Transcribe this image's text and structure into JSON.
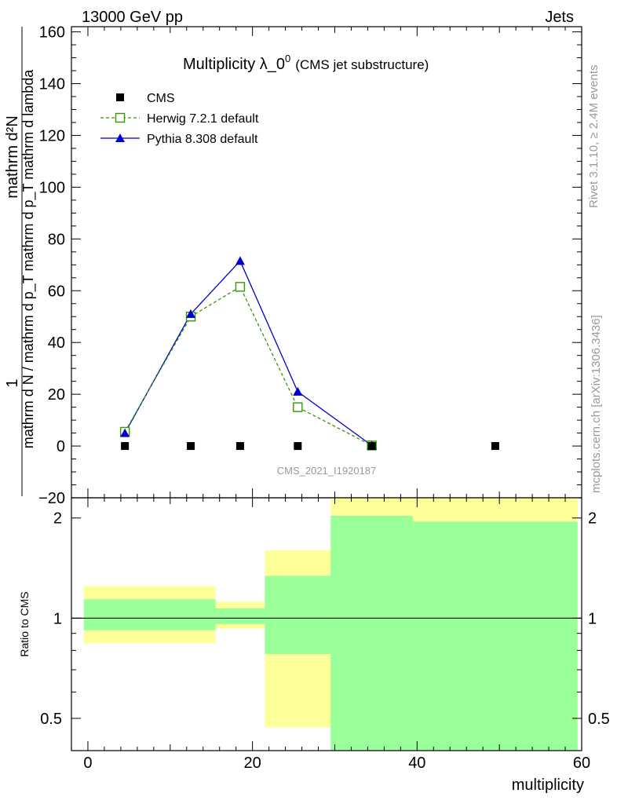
{
  "header": {
    "left": "13000 GeV pp",
    "right": "Jets"
  },
  "side": {
    "rivet": "Rivet 3.1.10, ≥ 2.4M events",
    "mcplots": "mcplots.cern.ch [arXiv:1306.3436]"
  },
  "chart_data": {
    "type": "line",
    "title_main": "Multiplicity λ_0",
    "title_sup": "0",
    "title_suffix": "(CMS jet substructure)",
    "analysis_id": "CMS_2021_I1920187",
    "ylabel_top": "1",
    "ylabel_fraction_num": "mathrm d²N",
    "ylabel_fraction_den": "mathrm d N / mathrm d p_T mathrm d p_T mathrm d lambda",
    "xlabel": "multiplicity",
    "ratio_ylabel": "Ratio to CMS",
    "xlim": [
      -2,
      60
    ],
    "ylim": [
      -20,
      162
    ],
    "ratio_ylim": [
      0.4,
      2.3
    ],
    "ratio_scale": "log",
    "x_ticks": [
      "0",
      "20",
      "40",
      "60"
    ],
    "y_ticks": [
      "−20",
      "0",
      "20",
      "40",
      "60",
      "80",
      "100",
      "120",
      "140",
      "160"
    ],
    "ratio_ticks": [
      "0.5",
      "1",
      "2"
    ],
    "legend_position": "top-left",
    "series": [
      {
        "name": "CMS",
        "style": "data",
        "color": "#000000",
        "x": [
          4.5,
          12.5,
          18.5,
          25.5,
          34.5,
          49.5
        ],
        "y": [
          0,
          0,
          0,
          0,
          0,
          0
        ]
      },
      {
        "name": "Herwig 7.2.1 default",
        "style": "dashed-open-square",
        "color": "#339900",
        "x": [
          4.5,
          12.5,
          18.5,
          25.5,
          34.5
        ],
        "y": [
          5.5,
          50,
          61.5,
          15,
          0.2
        ]
      },
      {
        "name": "Pythia 8.308 default",
        "style": "solid-filled-triangle",
        "color": "#0000cc",
        "x": [
          4.5,
          12.5,
          18.5,
          25.5,
          34.5
        ],
        "y": [
          5,
          51,
          71.5,
          21,
          0.2
        ]
      }
    ],
    "ratio_bands": [
      {
        "x0": -0.5,
        "x1": 15.5,
        "yellow": [
          0.84,
          1.25
        ],
        "green": [
          0.92,
          1.14
        ]
      },
      {
        "x0": 15.5,
        "x1": 21.5,
        "yellow": [
          0.93,
          1.12
        ],
        "green": [
          0.96,
          1.07
        ]
      },
      {
        "x0": 21.5,
        "x1": 29.5,
        "yellow": [
          0.47,
          1.6
        ],
        "green": [
          0.78,
          1.34
        ]
      },
      {
        "x0": 29.5,
        "x1": 39.5,
        "yellow": [
          0.4,
          2.3
        ],
        "green": [
          0.4,
          2.03
        ]
      },
      {
        "x0": 39.5,
        "x1": 59.5,
        "yellow": [
          0.4,
          2.3
        ],
        "green": [
          0.4,
          1.95
        ]
      }
    ],
    "colors": {
      "band_yellow": "#ffff99",
      "band_green": "#99ff99",
      "watermark": "#999999"
    }
  }
}
